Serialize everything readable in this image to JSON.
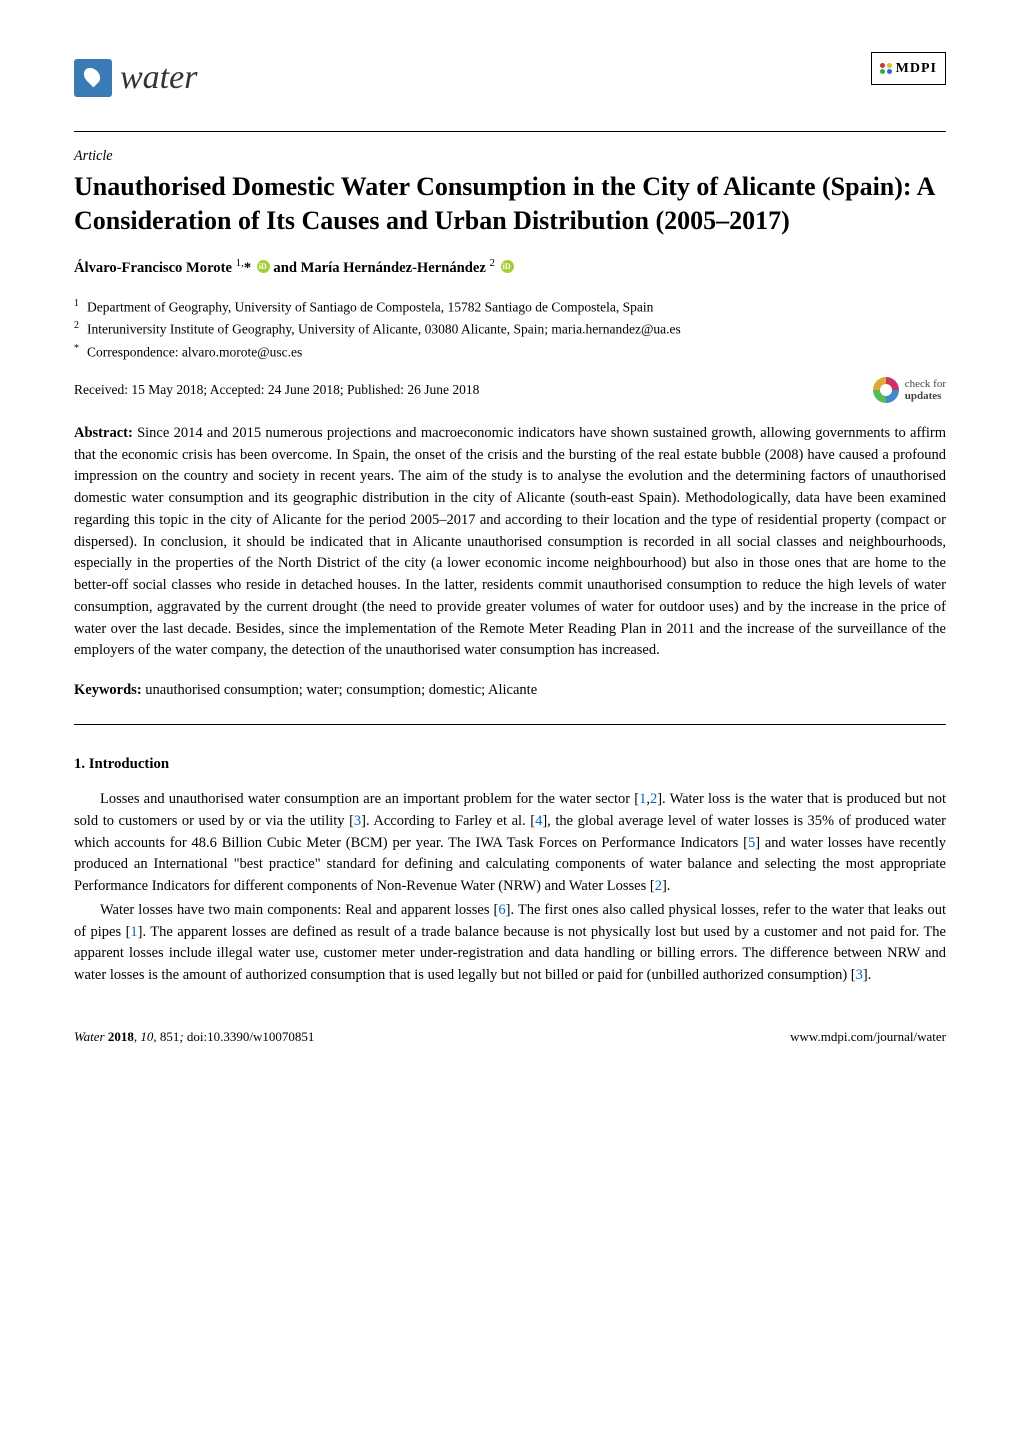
{
  "header": {
    "journal_name": "water",
    "publisher": "MDPI"
  },
  "article": {
    "type": "Article",
    "title": "Unauthorised Domestic Water Consumption in the City of Alicante (Spain): A Consideration of Its Causes and Urban Distribution (2005–2017)",
    "author1_name": "Álvaro-Francisco Morote",
    "author1_sup": "1,",
    "author_corr": "*",
    "author_and": " and ",
    "author2_name": "María Hernández-Hernández",
    "author2_sup": "2",
    "aff1_num": "1",
    "aff1_text": "Department of Geography, University of Santiago de Compostela, 15782 Santiago de Compostela, Spain",
    "aff2_num": "2",
    "aff2_text": "Interuniversity Institute of Geography, University of Alicante, 03080 Alicante, Spain; maria.hernandez@ua.es",
    "aff_corr_sym": "*",
    "aff_corr_text": "Correspondence: alvaro.morote@usc.es",
    "dates": "Received: 15 May 2018; Accepted: 24 June 2018; Published: 26 June 2018",
    "check_updates_l1": "check for",
    "check_updates_l2": "updates",
    "abstract_label": "Abstract:",
    "abstract_text": " Since 2014 and 2015 numerous projections and macroeconomic indicators have shown sustained growth, allowing governments to affirm that the economic crisis has been overcome. In Spain, the onset of the crisis and the bursting of the real estate bubble (2008) have caused a profound impression on the country and society in recent years. The aim of the study is to analyse the evolution and the determining factors of unauthorised domestic water consumption and its geographic distribution in the city of Alicante (south-east Spain). Methodologically, data have been examined regarding this topic in the city of Alicante for the period 2005–2017 and according to their location and the type of residential property (compact or dispersed). In conclusion, it should be indicated that in Alicante unauthorised consumption is recorded in all social classes and neighbourhoods, especially in the properties of the North District of the city (a lower economic income neighbourhood) but also in those ones that are home to the better-off social classes who reside in detached houses. In the latter, residents commit unauthorised consumption to reduce the high levels of water consumption, aggravated by the current drought (the need to provide greater volumes of water for outdoor uses) and by the increase in the price of water over the last decade. Besides, since the implementation of the Remote Meter Reading Plan in 2011 and the increase of the surveillance of the employers of the water company, the detection of the unauthorised water consumption has increased.",
    "keywords_label": "Keywords:",
    "keywords_text": " unauthorised consumption; water; consumption; domestic; Alicante"
  },
  "section1": {
    "title": "1. Introduction",
    "p1_a": "Losses and unauthorised water consumption are an important problem for the water sector [",
    "p1_r1": "1",
    "p1_b": ",",
    "p1_r2": "2",
    "p1_c": "]. Water loss is the water that is produced but not sold to customers or used by or via the utility [",
    "p1_r3": "3",
    "p1_d": "]. According to Farley et al. [",
    "p1_r4": "4",
    "p1_e": "], the global average level of water losses is 35% of produced water which accounts for 48.6 Billion Cubic Meter (BCM) per year. The IWA Task Forces on Performance Indicators [",
    "p1_r5": "5",
    "p1_f": "] and water losses have recently produced an International \"best practice\" standard for defining and calculating components of water balance and selecting the most appropriate Performance Indicators for different components of Non-Revenue Water (NRW) and Water Losses [",
    "p1_r6": "2",
    "p1_g": "].",
    "p2_a": "Water losses have two main components: Real and apparent losses [",
    "p2_r1": "6",
    "p2_b": "]. The first ones also called physical losses, refer to the water that leaks out of pipes [",
    "p2_r2": "1",
    "p2_c": "]. The apparent losses are defined as result of a trade balance because is not physically lost but used by a customer and not paid for. The apparent losses include illegal water use, customer meter under-registration and data handling or billing errors. The difference between NRW and water losses is the amount of authorized consumption that is used legally but not billed or paid for (unbilled authorized consumption) [",
    "p2_r3": "3",
    "p2_d": "]."
  },
  "footer": {
    "journal": "Water",
    "year": "2018",
    "vol": "10",
    "pages": "851",
    "doi": "doi:10.3390/w10070851",
    "url": "www.mdpi.com/journal/water"
  },
  "colors": {
    "logo_bg": "#3b7bb5",
    "orcid": "#a6ce39",
    "ref_link": "#0066cc"
  }
}
